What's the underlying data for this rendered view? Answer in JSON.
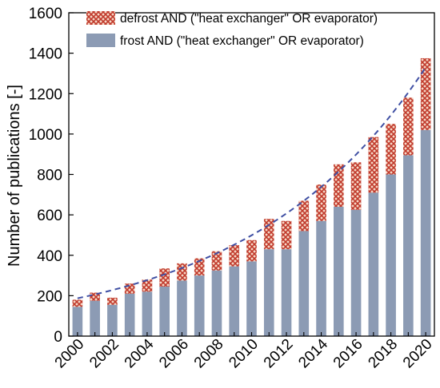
{
  "chart_data": {
    "type": "bar",
    "stacked": true,
    "x": [
      2000,
      2001,
      2002,
      2003,
      2004,
      2005,
      2006,
      2007,
      2008,
      2009,
      2010,
      2011,
      2012,
      2013,
      2014,
      2015,
      2016,
      2017,
      2018,
      2019,
      2020
    ],
    "x_tick_labels": [
      "2000",
      "2002",
      "2004",
      "2006",
      "2008",
      "2010",
      "2012",
      "2014",
      "2016",
      "2018",
      "2020"
    ],
    "y_tick_labels": [
      "0",
      "200",
      "400",
      "600",
      "800",
      "1000",
      "1200",
      "1400",
      "1600"
    ],
    "ylim": [
      0,
      1600
    ],
    "ylabel": "Number of publications [-]",
    "xlabel": "",
    "title": "",
    "grid": false,
    "legend_position": "top-left",
    "trendline": {
      "style": "dashed",
      "color": "#3f4fa3",
      "shape": "exponential"
    },
    "series": [
      {
        "name": "frost AND (\"heat exchanger\" OR evaporator)",
        "color": "#8c9bb4",
        "values": [
          145,
          175,
          155,
          210,
          220,
          245,
          275,
          300,
          325,
          345,
          370,
          430,
          430,
          520,
          570,
          640,
          625,
          710,
          800,
          895,
          1020
        ]
      },
      {
        "name": "defrost AND (\"heat exchanger\" OR evaporator)",
        "color": "#c0392b",
        "pattern": "crosshatch-red",
        "values": [
          35,
          40,
          35,
          50,
          60,
          90,
          85,
          85,
          95,
          105,
          105,
          150,
          140,
          150,
          180,
          210,
          235,
          275,
          250,
          285,
          355
        ]
      }
    ]
  }
}
